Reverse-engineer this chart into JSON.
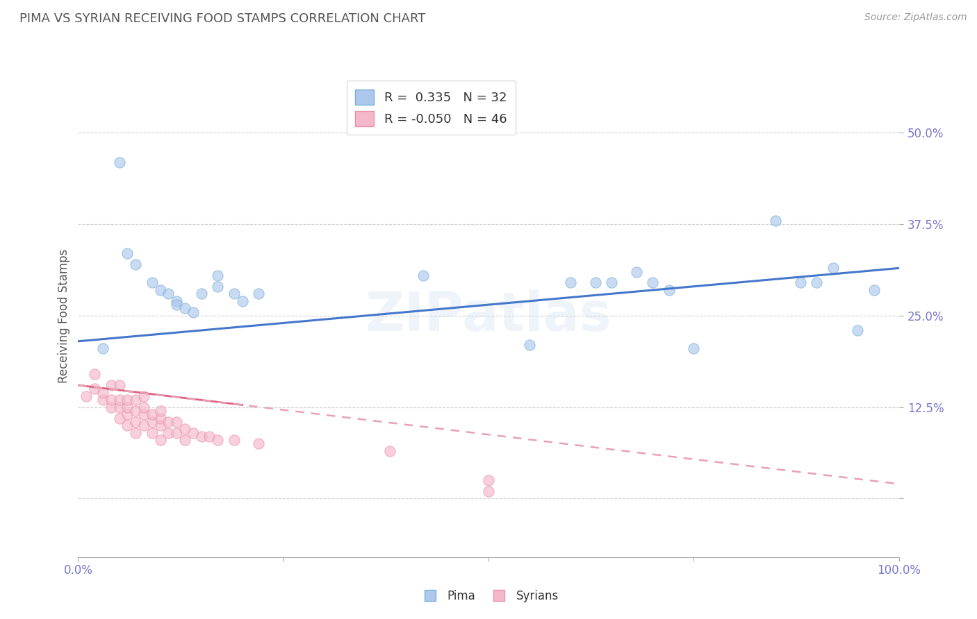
{
  "title": "PIMA VS SYRIAN RECEIVING FOOD STAMPS CORRELATION CHART",
  "source": "Source: ZipAtlas.com",
  "ylabel": "Receiving Food Stamps",
  "watermark": "ZIPatlas",
  "pima_R": 0.335,
  "pima_N": 32,
  "syrian_R": -0.05,
  "syrian_N": 46,
  "pima_color": "#adc8ed",
  "pima_edge": "#7aafd4",
  "syrian_color": "#f5b8cb",
  "syrian_edge": "#e890a8",
  "pima_line_color": "#4477cc",
  "syrian_line_color": "#e8a0b4",
  "syrian_line_solid_color": "#e06080",
  "bg_color": "#ffffff",
  "grid_color": "#cccccc",
  "title_color": "#555555",
  "axis_label_color": "#555555",
  "tick_color": "#7777cc",
  "xlim": [
    0.0,
    1.0
  ],
  "ylim": [
    -0.08,
    0.58
  ],
  "xticks": [
    0.0,
    0.25,
    0.5,
    0.75,
    1.0
  ],
  "xticklabels": [
    "0.0%",
    "",
    "",
    "",
    "100.0%"
  ],
  "ytick_positions": [
    0.0,
    0.125,
    0.25,
    0.375,
    0.5
  ],
  "yticklabels_right": [
    "",
    "12.5%",
    "25.0%",
    "37.5%",
    "50.0%"
  ],
  "pima_x": [
    0.03,
    0.05,
    0.06,
    0.07,
    0.09,
    0.1,
    0.11,
    0.12,
    0.12,
    0.13,
    0.14,
    0.15,
    0.17,
    0.17,
    0.19,
    0.2,
    0.22,
    0.42,
    0.55,
    0.6,
    0.63,
    0.65,
    0.68,
    0.7,
    0.72,
    0.75,
    0.85,
    0.88,
    0.9,
    0.92,
    0.95,
    0.97
  ],
  "pima_y": [
    0.205,
    0.46,
    0.335,
    0.32,
    0.295,
    0.285,
    0.28,
    0.27,
    0.265,
    0.26,
    0.255,
    0.28,
    0.305,
    0.29,
    0.28,
    0.27,
    0.28,
    0.305,
    0.21,
    0.295,
    0.295,
    0.295,
    0.31,
    0.295,
    0.285,
    0.205,
    0.38,
    0.295,
    0.295,
    0.315,
    0.23,
    0.285
  ],
  "syrian_x": [
    0.01,
    0.02,
    0.02,
    0.03,
    0.03,
    0.04,
    0.04,
    0.04,
    0.05,
    0.05,
    0.05,
    0.05,
    0.06,
    0.06,
    0.06,
    0.06,
    0.07,
    0.07,
    0.07,
    0.07,
    0.08,
    0.08,
    0.08,
    0.08,
    0.09,
    0.09,
    0.09,
    0.1,
    0.1,
    0.1,
    0.1,
    0.11,
    0.11,
    0.12,
    0.12,
    0.13,
    0.13,
    0.14,
    0.15,
    0.16,
    0.17,
    0.19,
    0.22,
    0.38,
    0.5,
    0.5
  ],
  "syrian_y": [
    0.14,
    0.15,
    0.17,
    0.135,
    0.145,
    0.125,
    0.135,
    0.155,
    0.11,
    0.125,
    0.135,
    0.155,
    0.1,
    0.115,
    0.125,
    0.135,
    0.09,
    0.105,
    0.12,
    0.135,
    0.1,
    0.115,
    0.125,
    0.14,
    0.09,
    0.105,
    0.115,
    0.08,
    0.1,
    0.11,
    0.12,
    0.09,
    0.105,
    0.09,
    0.105,
    0.08,
    0.095,
    0.09,
    0.085,
    0.085,
    0.08,
    0.08,
    0.075,
    0.065,
    0.025,
    0.01
  ],
  "pima_line_y_start": 0.215,
  "pima_line_y_end": 0.315,
  "syrian_line_y_start": 0.155,
  "syrian_line_y_end": 0.02,
  "marker_size": 10,
  "marker_alpha": 0.65,
  "figsize": [
    14.06,
    8.92
  ],
  "dpi": 100
}
